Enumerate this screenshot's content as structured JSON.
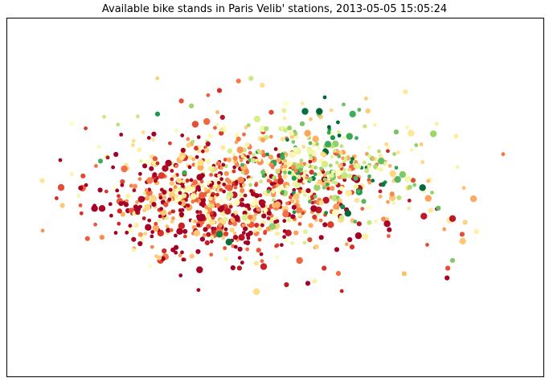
{
  "chart_data": {
    "type": "scatter",
    "title": "Available bike stands in Paris Velib' stations, 2013-05-05 15:05:24",
    "xlabel": "",
    "ylabel": "",
    "grid": false,
    "legend": "none",
    "axes_ticks": false,
    "colormap": "RdYlGn",
    "colormap_stops": [
      "#a50026",
      "#d73027",
      "#f46d43",
      "#fdae61",
      "#fee08b",
      "#ffffbf",
      "#d9ef8b",
      "#a6d96a",
      "#66bd63",
      "#1a9850",
      "#006837"
    ],
    "size_levels": [
      "small",
      "medium",
      "large"
    ],
    "x_range": [
      0,
      1
    ],
    "y_range": [
      0,
      1
    ],
    "n_points": 1200,
    "clusters": [
      {
        "cx": 0.46,
        "cy": 0.52,
        "sx": 0.17,
        "sy": 0.14,
        "share": 0.55,
        "color_bias": 0.3
      },
      {
        "cx": 0.34,
        "cy": 0.46,
        "sx": 0.12,
        "sy": 0.1,
        "share": 0.25,
        "color_bias": 0.15
      },
      {
        "cx": 0.58,
        "cy": 0.62,
        "sx": 0.1,
        "sy": 0.09,
        "share": 0.2,
        "color_bias": 0.55
      }
    ],
    "points": [
      {
        "x": 0.05,
        "y": 0.46,
        "v": 0.35,
        "s": 2
      },
      {
        "x": 0.07,
        "y": 0.58,
        "v": 0.45,
        "s": 1
      },
      {
        "x": 0.09,
        "y": 0.43,
        "v": 0.1,
        "s": 1
      },
      {
        "x": 0.13,
        "y": 0.63,
        "v": 0.85,
        "s": 2
      },
      {
        "x": 0.16,
        "y": 0.53,
        "v": 0.5,
        "s": 1
      },
      {
        "x": 0.18,
        "y": 0.6,
        "v": 0.2,
        "s": 3
      },
      {
        "x": 0.2,
        "y": 0.29,
        "v": 0.55,
        "s": 1
      },
      {
        "x": 0.22,
        "y": 0.74,
        "v": 0.4,
        "s": 1
      },
      {
        "x": 0.25,
        "y": 0.81,
        "v": 0.9,
        "s": 2
      },
      {
        "x": 0.3,
        "y": 0.86,
        "v": 0.15,
        "s": 2
      },
      {
        "x": 0.38,
        "y": 0.9,
        "v": 0.1,
        "s": 2
      },
      {
        "x": 0.47,
        "y": 0.92,
        "v": 0.4,
        "s": 2
      },
      {
        "x": 0.52,
        "y": 0.85,
        "v": 0.5,
        "s": 2
      },
      {
        "x": 0.56,
        "y": 0.82,
        "v": 0.98,
        "s": 3
      },
      {
        "x": 0.59,
        "y": 0.82,
        "v": 1.0,
        "s": 3
      },
      {
        "x": 0.66,
        "y": 0.81,
        "v": 0.85,
        "s": 3
      },
      {
        "x": 0.72,
        "y": 0.63,
        "v": 0.8,
        "s": 3
      },
      {
        "x": 0.78,
        "y": 0.53,
        "v": 0.7,
        "s": 2
      },
      {
        "x": 0.84,
        "y": 0.45,
        "v": 0.8,
        "s": 2
      },
      {
        "x": 0.87,
        "y": 0.41,
        "v": 0.05,
        "s": 3
      },
      {
        "x": 0.89,
        "y": 0.35,
        "v": 0.15,
        "s": 2
      },
      {
        "x": 0.92,
        "y": 0.36,
        "v": 0.45,
        "s": 2
      },
      {
        "x": 0.87,
        "y": 0.25,
        "v": 0.75,
        "s": 2
      },
      {
        "x": 0.86,
        "y": 0.22,
        "v": 0.15,
        "s": 2
      },
      {
        "x": 0.38,
        "y": 0.35,
        "v": 0.95,
        "s": 3
      },
      {
        "x": 0.4,
        "y": 0.32,
        "v": 0.98,
        "s": 3
      },
      {
        "x": 0.65,
        "y": 0.43,
        "v": 1.0,
        "s": 3
      },
      {
        "x": 0.6,
        "y": 0.22,
        "v": 0.1,
        "s": 2
      },
      {
        "x": 0.63,
        "y": 0.2,
        "v": 0.2,
        "s": 2
      },
      {
        "x": 0.58,
        "y": 0.17,
        "v": 0.45,
        "s": 2
      }
    ]
  }
}
